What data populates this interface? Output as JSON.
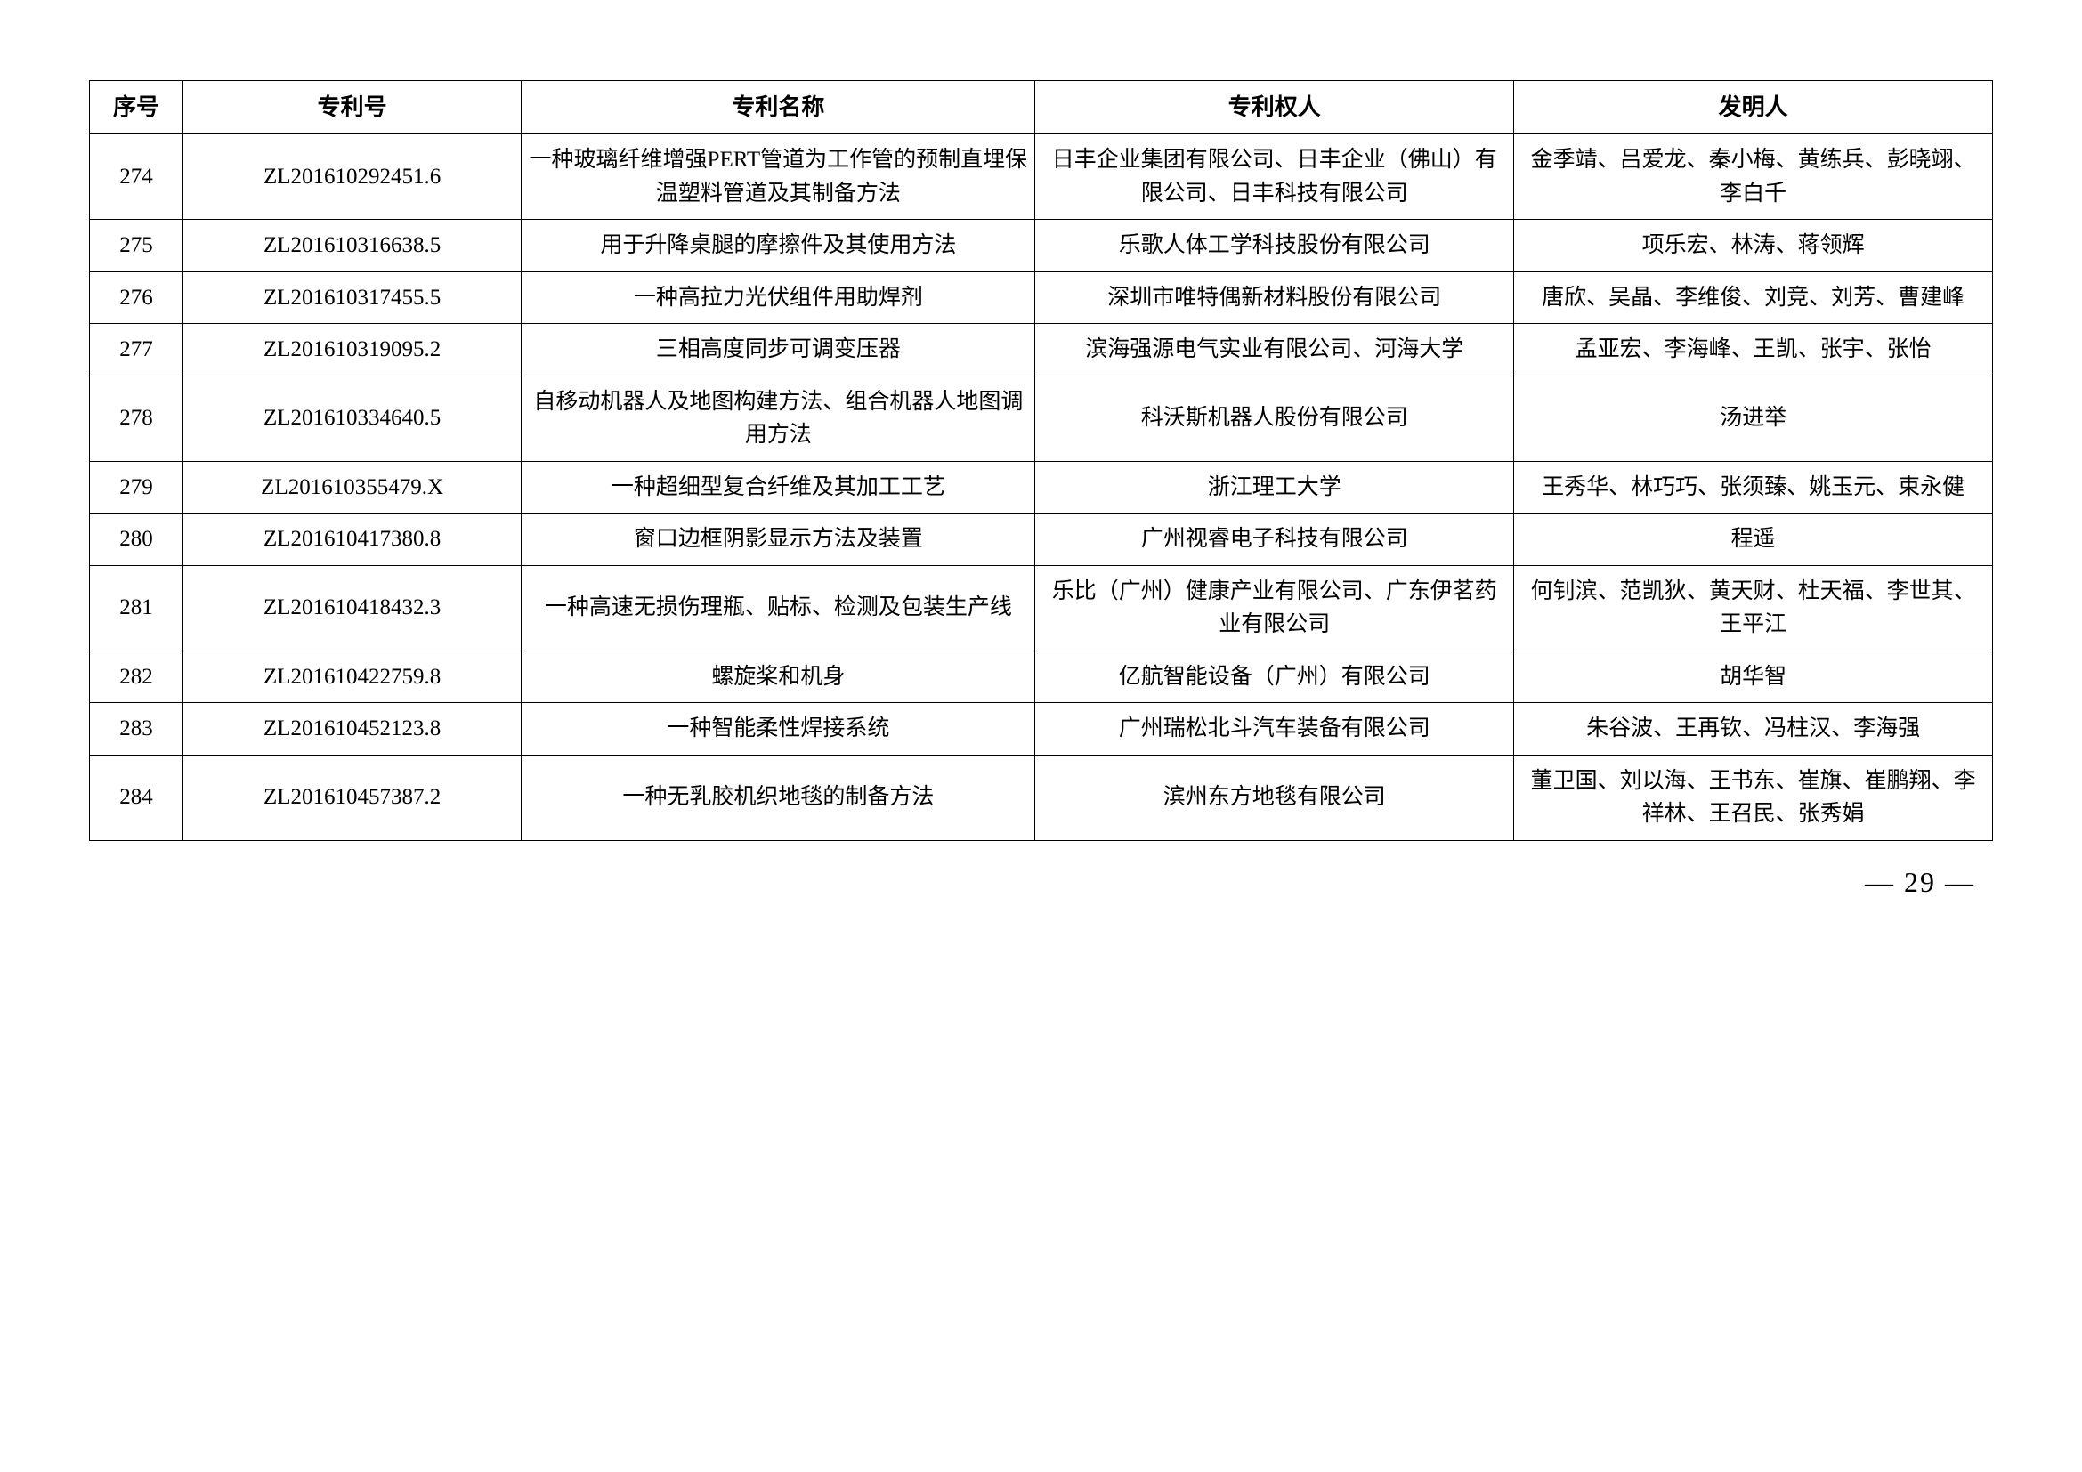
{
  "table": {
    "columns": [
      "序号",
      "专利号",
      "专利名称",
      "专利权人",
      "发明人"
    ],
    "rows": [
      {
        "seq": "274",
        "patentNo": "ZL201610292451.6",
        "patentName": "一种玻璃纤维增强PERT管道为工作管的预制直埋保温塑料管道及其制备方法",
        "owner": "日丰企业集团有限公司、日丰企业（佛山）有限公司、日丰科技有限公司",
        "inventor": "金季靖、吕爱龙、秦小梅、黄练兵、彭晓翊、李白千"
      },
      {
        "seq": "275",
        "patentNo": "ZL201610316638.5",
        "patentName": "用于升降桌腿的摩擦件及其使用方法",
        "owner": "乐歌人体工学科技股份有限公司",
        "inventor": "项乐宏、林涛、蒋领辉"
      },
      {
        "seq": "276",
        "patentNo": "ZL201610317455.5",
        "patentName": "一种高拉力光伏组件用助焊剂",
        "owner": "深圳市唯特偶新材料股份有限公司",
        "inventor": "唐欣、吴晶、李维俊、刘竞、刘芳、曹建峰"
      },
      {
        "seq": "277",
        "patentNo": "ZL201610319095.2",
        "patentName": "三相高度同步可调变压器",
        "owner": "滨海强源电气实业有限公司、河海大学",
        "inventor": "孟亚宏、李海峰、王凯、张宇、张怡"
      },
      {
        "seq": "278",
        "patentNo": "ZL201610334640.5",
        "patentName": "自移动机器人及地图构建方法、组合机器人地图调用方法",
        "owner": "科沃斯机器人股份有限公司",
        "inventor": "汤进举"
      },
      {
        "seq": "279",
        "patentNo": "ZL201610355479.X",
        "patentName": "一种超细型复合纤维及其加工工艺",
        "owner": "浙江理工大学",
        "inventor": "王秀华、林巧巧、张须臻、姚玉元、束永健"
      },
      {
        "seq": "280",
        "patentNo": "ZL201610417380.8",
        "patentName": "窗口边框阴影显示方法及装置",
        "owner": "广州视睿电子科技有限公司",
        "inventor": "程遥"
      },
      {
        "seq": "281",
        "patentNo": "ZL201610418432.3",
        "patentName": "一种高速无损伤理瓶、贴标、检测及包装生产线",
        "owner": "乐比（广州）健康产业有限公司、广东伊茗药业有限公司",
        "inventor": "何钊滨、范凯狄、黄天财、杜天福、李世其、王平江"
      },
      {
        "seq": "282",
        "patentNo": "ZL201610422759.8",
        "patentName": "螺旋桨和机身",
        "owner": "亿航智能设备（广州）有限公司",
        "inventor": "胡华智"
      },
      {
        "seq": "283",
        "patentNo": "ZL201610452123.8",
        "patentName": "一种智能柔性焊接系统",
        "owner": "广州瑞松北斗汽车装备有限公司",
        "inventor": "朱谷波、王再钦、冯柱汉、李海强"
      },
      {
        "seq": "284",
        "patentNo": "ZL201610457387.2",
        "patentName": "一种无乳胶机织地毯的制备方法",
        "owner": "滨州东方地毯有限公司",
        "inventor": "董卫国、刘以海、王书东、崔旗、崔鹏翔、李祥林、王召民、张秀娟"
      }
    ]
  },
  "pageNumber": "— 29 —"
}
